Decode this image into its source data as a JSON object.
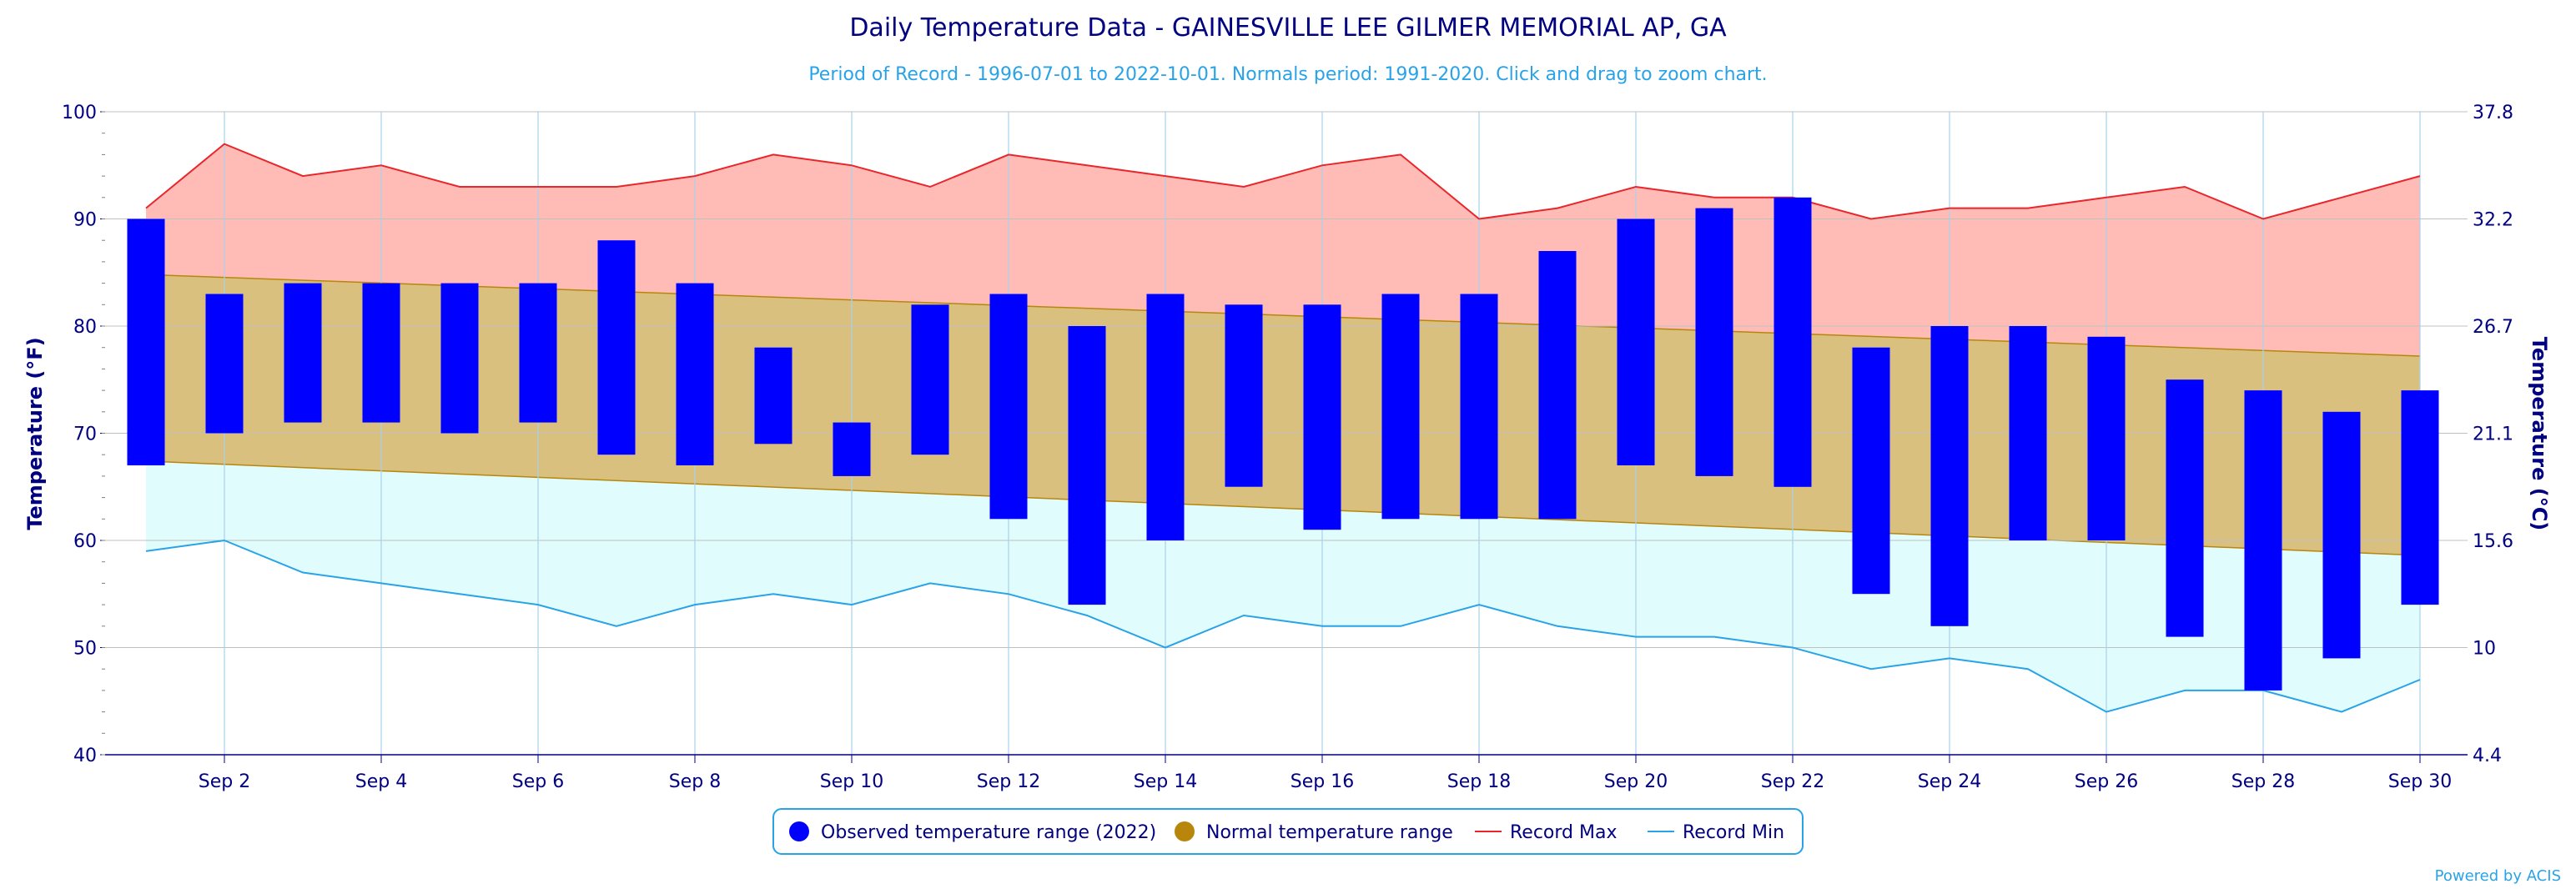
{
  "title": "Daily Temperature Data - GAINESVILLE LEE GILMER MEMORIAL AP, GA",
  "subtitle": "Period of Record - 1996-07-01 to 2022-10-01. Normals period: 1991-2020. Click and drag to zoom chart.",
  "credits": "Powered by ACIS",
  "colors": {
    "observed": "#0000ff",
    "normal_fill": "#d9c07f",
    "normal_line": "#b8860b",
    "normal_legend": "#b8860b",
    "record_max_line": "#e8262b",
    "record_max_fill": "#ffbbb6",
    "record_min_line": "#29a3e8",
    "record_min_fill": "#e0fcfc",
    "grid_v": "#a9d2ec",
    "grid_h": "#c0c0c0",
    "text": "#000080"
  },
  "chart_data": {
    "type": "range-bar",
    "title": "Daily Temperature Data - GAINESVILLE LEE GILMER MEMORIAL AP, GA",
    "x_ticks": [
      {
        "day": 2,
        "label": "Sep 2"
      },
      {
        "day": 4,
        "label": "Sep 4"
      },
      {
        "day": 6,
        "label": "Sep 6"
      },
      {
        "day": 8,
        "label": "Sep 8"
      },
      {
        "day": 10,
        "label": "Sep 10"
      },
      {
        "day": 12,
        "label": "Sep 12"
      },
      {
        "day": 14,
        "label": "Sep 14"
      },
      {
        "day": 16,
        "label": "Sep 16"
      },
      {
        "day": 18,
        "label": "Sep 18"
      },
      {
        "day": 20,
        "label": "Sep 20"
      },
      {
        "day": 22,
        "label": "Sep 22"
      },
      {
        "day": 24,
        "label": "Sep 24"
      },
      {
        "day": 26,
        "label": "Sep 26"
      },
      {
        "day": 28,
        "label": "Sep 28"
      },
      {
        "day": 30,
        "label": "Sep 30"
      }
    ],
    "xlim": [
      1,
      30
    ],
    "y_left": {
      "label": "Temperature (°F)",
      "range": [
        40,
        100
      ],
      "ticks": [
        "40",
        "50",
        "60",
        "70",
        "80",
        "90",
        "100"
      ]
    },
    "y_right": {
      "label": "Temperature (°C)",
      "range": [
        4.4,
        37.8
      ],
      "ticks": [
        "4.4",
        "10",
        "15.6",
        "21.1",
        "26.7",
        "32.2",
        "37.8"
      ]
    },
    "grid": true,
    "legend_position": "bottom-center",
    "series": [
      {
        "name": "Observed temperature range (2022)",
        "type": "columnrange",
        "days": [
          1,
          2,
          3,
          4,
          5,
          6,
          7,
          8,
          9,
          10,
          11,
          12,
          13,
          14,
          15,
          16,
          17,
          18,
          19,
          20,
          21,
          22,
          23,
          24,
          25,
          26,
          27,
          28,
          29,
          30
        ],
        "high": [
          90,
          83,
          84,
          84,
          84,
          84,
          88,
          84,
          78,
          71,
          82,
          83,
          80,
          83,
          82,
          82,
          83,
          83,
          87,
          90,
          91,
          92,
          78,
          80,
          80,
          79,
          75,
          74,
          72,
          74
        ],
        "low": [
          67,
          70,
          71,
          71,
          70,
          71,
          68,
          67,
          69,
          66,
          68,
          62,
          54,
          60,
          65,
          61,
          62,
          62,
          62,
          67,
          66,
          65,
          55,
          52,
          60,
          60,
          51,
          46,
          49,
          54
        ]
      },
      {
        "name": "Normal temperature range",
        "type": "arearange",
        "start_day": 1,
        "end_day": 30,
        "high_start": 84.8,
        "high_end": 77.2,
        "low_start": 67.4,
        "low_end": 58.6
      },
      {
        "name": "Record Max",
        "type": "line",
        "days": [
          1,
          2,
          3,
          4,
          5,
          6,
          7,
          8,
          9,
          10,
          11,
          12,
          13,
          14,
          15,
          16,
          17,
          18,
          19,
          20,
          21,
          22,
          23,
          24,
          25,
          26,
          27,
          28,
          29,
          30
        ],
        "values": [
          91,
          97,
          94,
          95,
          93,
          93,
          93,
          94,
          96,
          95,
          93,
          96,
          95,
          94,
          93,
          95,
          96,
          90,
          91,
          93,
          92,
          92,
          90,
          91,
          91,
          92,
          93,
          90,
          92,
          94
        ]
      },
      {
        "name": "Record Min",
        "type": "line",
        "days": [
          1,
          2,
          3,
          4,
          5,
          6,
          7,
          8,
          9,
          10,
          11,
          12,
          13,
          14,
          15,
          16,
          17,
          18,
          19,
          20,
          21,
          22,
          23,
          24,
          25,
          26,
          27,
          28,
          29,
          30
        ],
        "values": [
          59,
          60,
          57,
          56,
          55,
          54,
          52,
          54,
          55,
          54,
          56,
          55,
          53,
          50,
          53,
          52,
          52,
          54,
          52,
          51,
          51,
          50,
          48,
          49,
          48,
          44,
          46,
          46,
          44,
          47
        ]
      }
    ]
  },
  "legend": {
    "items": [
      {
        "label": "Observed temperature range (2022)",
        "symbol": "circle",
        "color": "#0000ff"
      },
      {
        "label": "Normal temperature range",
        "symbol": "circle",
        "color": "#b8860b"
      },
      {
        "label": "Record Max",
        "symbol": "line",
        "color": "#e8262b"
      },
      {
        "label": "Record Min",
        "symbol": "line",
        "color": "#29a3e8"
      }
    ]
  }
}
